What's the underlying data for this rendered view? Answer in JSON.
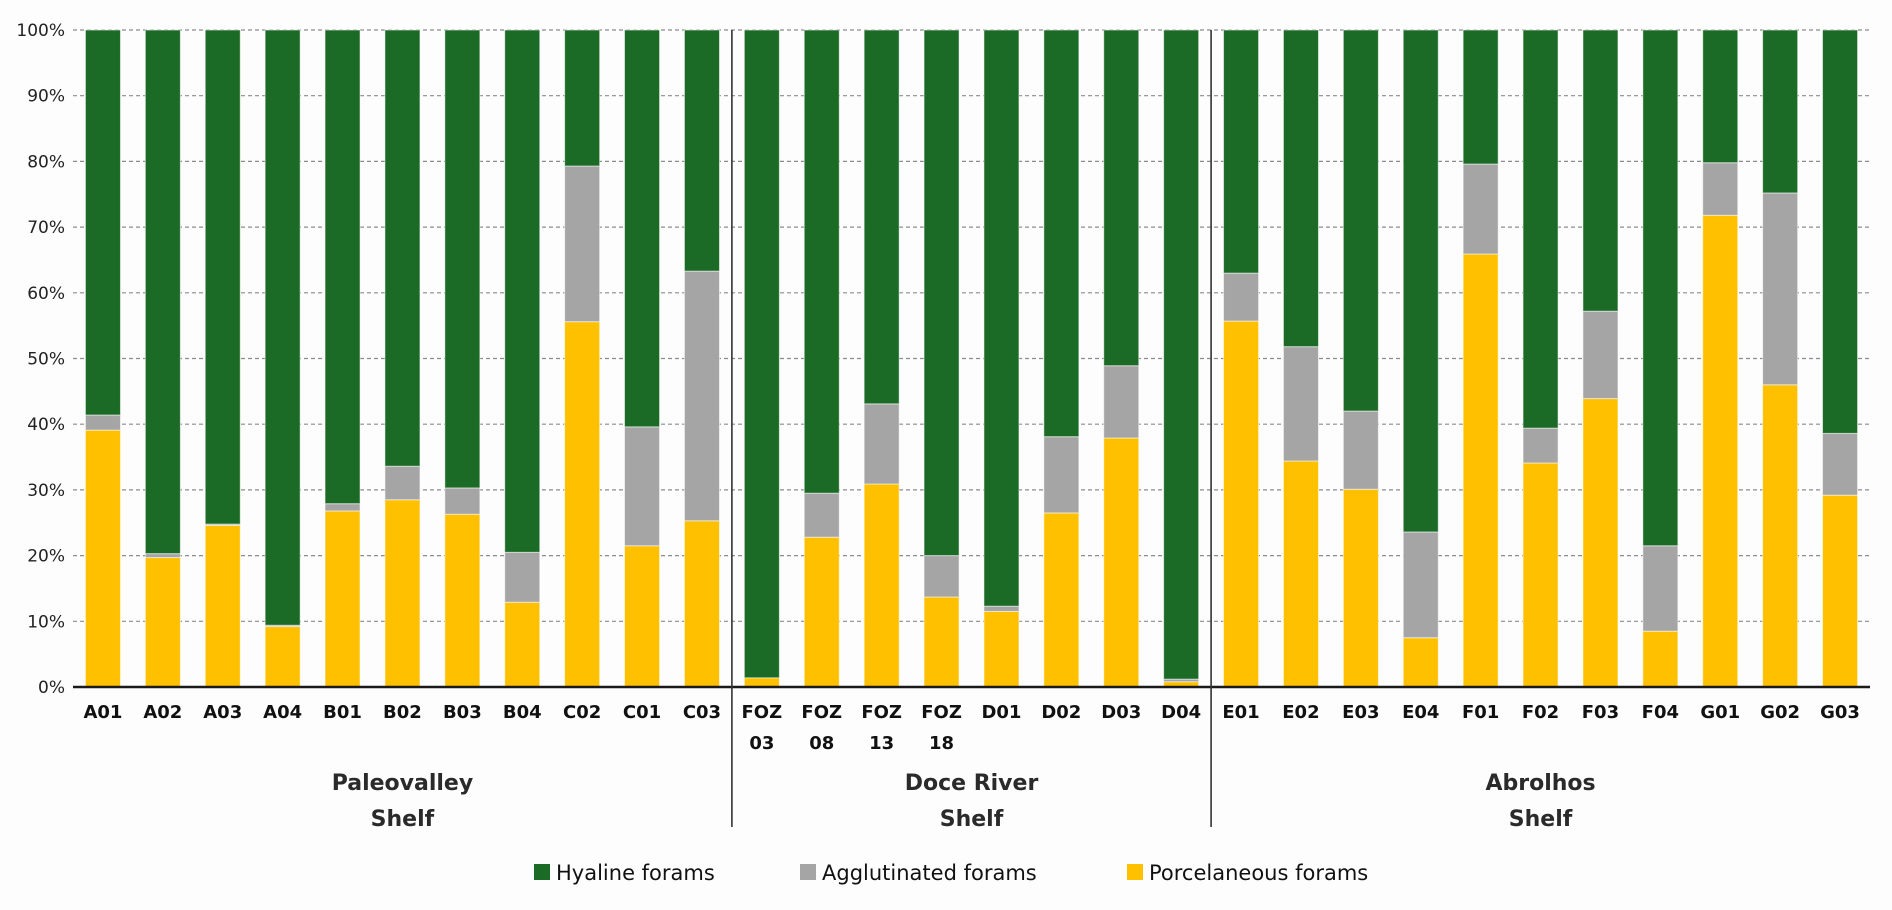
{
  "chart_data": {
    "type": "bar",
    "stacked": true,
    "percent": true,
    "title": "",
    "xlabel": "",
    "ylabel": "",
    "ylim": [
      0,
      100
    ],
    "yticks": [
      "0%",
      "10%",
      "20%",
      "30%",
      "40%",
      "50%",
      "60%",
      "70%",
      "80%",
      "90%",
      "100%"
    ],
    "grid": "horizontal dashed",
    "legend_position": "bottom",
    "categories": [
      "A01",
      "A02",
      "A03",
      "A04",
      "B01",
      "B02",
      "B03",
      "B04",
      "C02",
      "C01",
      "C03",
      "FOZ 03",
      "FOZ 08",
      "FOZ 13",
      "FOZ 18",
      "D01",
      "D02",
      "D03",
      "D04",
      "E01",
      "E02",
      "E03",
      "E04",
      "F01",
      "F02",
      "F03",
      "F04",
      "G01",
      "G02",
      "G03"
    ],
    "category_labels": [
      [
        "A01"
      ],
      [
        "A02"
      ],
      [
        "A03"
      ],
      [
        "A04"
      ],
      [
        "B01"
      ],
      [
        "B02"
      ],
      [
        "B03"
      ],
      [
        "B04"
      ],
      [
        "C02"
      ],
      [
        "C01"
      ],
      [
        "C03"
      ],
      [
        "FOZ",
        "03"
      ],
      [
        "FOZ",
        "08"
      ],
      [
        "FOZ",
        "13"
      ],
      [
        "FOZ",
        "18"
      ],
      [
        "D01"
      ],
      [
        "D02"
      ],
      [
        "D03"
      ],
      [
        "D04"
      ],
      [
        "E01"
      ],
      [
        "E02"
      ],
      [
        "E03"
      ],
      [
        "E04"
      ],
      [
        "F01"
      ],
      [
        "F02"
      ],
      [
        "F03"
      ],
      [
        "F04"
      ],
      [
        "G01"
      ],
      [
        "G02"
      ],
      [
        "G03"
      ]
    ],
    "groups": [
      {
        "name": "Paleovalley Shelf",
        "lines": [
          "Paleovalley",
          "Shelf"
        ],
        "start": 0,
        "count": 11
      },
      {
        "name": "Doce River Shelf",
        "lines": [
          "Doce River",
          "Shelf"
        ],
        "start": 11,
        "count": 8
      },
      {
        "name": "Abrolhos Shelf",
        "lines": [
          "Abrolhos",
          "Shelf"
        ],
        "start": 19,
        "count": 11
      }
    ],
    "series": [
      {
        "name": "Porcelaneous forams",
        "color": "#FFC000",
        "values": [
          39.1,
          19.7,
          24.6,
          9.2,
          26.8,
          28.5,
          26.3,
          12.9,
          55.6,
          21.5,
          25.3,
          1.4,
          22.8,
          30.9,
          13.7,
          11.5,
          26.5,
          37.9,
          0.8,
          55.7,
          34.4,
          30.1,
          7.5,
          65.9,
          34.1,
          43.9,
          8.5,
          71.8,
          46.0,
          29.2
        ]
      },
      {
        "name": "Agglutinated forams",
        "color": "#A5A5A5",
        "values": [
          2.3,
          0.6,
          0.2,
          0.2,
          1.1,
          5.1,
          4.0,
          7.6,
          23.7,
          18.1,
          38.0,
          0.0,
          6.7,
          12.2,
          6.3,
          0.8,
          11.6,
          11.0,
          0.4,
          7.3,
          17.4,
          11.9,
          16.1,
          13.7,
          5.3,
          13.3,
          13.0,
          8.0,
          29.2,
          9.4
        ]
      },
      {
        "name": "Hyaline forams",
        "color": "#1B6B26",
        "values": [
          58.6,
          79.7,
          75.2,
          90.6,
          72.1,
          66.4,
          69.7,
          79.5,
          20.7,
          60.4,
          36.7,
          98.6,
          70.5,
          56.9,
          80.0,
          87.7,
          61.9,
          51.1,
          98.8,
          37.0,
          48.2,
          58.0,
          76.4,
          20.4,
          60.6,
          42.8,
          78.5,
          20.2,
          24.8,
          61.4
        ]
      }
    ],
    "legend": [
      {
        "label": "Hyaline forams",
        "color": "#1B6B26"
      },
      {
        "label": "Agglutinated forams",
        "color": "#A5A5A5"
      },
      {
        "label": "Porcelaneous forams",
        "color": "#FFC000"
      }
    ]
  }
}
